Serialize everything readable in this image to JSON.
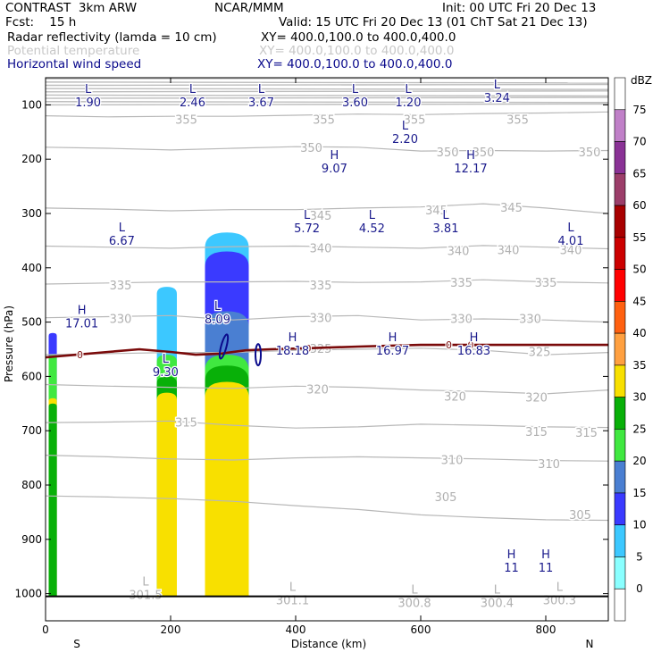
{
  "header": {
    "left_line1": "CONTRAST  3km ARW",
    "center_line1": "NCAR/MMM",
    "right_line1": "Init: 00 UTC Fri 20 Dec 13",
    "left_line2": "Fcst:    15 h",
    "right_line2": "Valid: 15 UTC Fri 20 Dec 13 (01 ChT Sat 21 Dec 13)",
    "fields": [
      {
        "name": "Radar reflectivity (lamda = 10 cm)",
        "xy": "XY= 400.0,100.0 to 400.0,400.0",
        "style": "black"
      },
      {
        "name": "Potential temperature",
        "xy": "XY= 400.0,100.0 to 400.0,400.0",
        "style": "gray"
      },
      {
        "name": "Horizontal wind speed",
        "xy": "XY= 400.0,100.0 to 400.0,400.0",
        "style": "blue"
      }
    ]
  },
  "chart_data": {
    "type": "cross-section",
    "xlabel": "Distance (km)",
    "ylabel": "Pressure (hPa)",
    "xlim": [
      0,
      900
    ],
    "ylim": [
      1050,
      50
    ],
    "x_ticks": [
      0,
      200,
      400,
      600,
      800
    ],
    "y_ticks": [
      100,
      200,
      300,
      400,
      500,
      600,
      700,
      800,
      900,
      1000
    ],
    "x_end_labels": {
      "left": "S",
      "right": "N"
    },
    "colorbar": {
      "title": "dBZ",
      "levels": [
        0,
        5,
        10,
        15,
        20,
        25,
        30,
        35,
        40,
        45,
        50,
        55,
        60,
        65,
        70,
        75
      ],
      "colors": [
        "#ffffff",
        "#8affff",
        "#3cc8ff",
        "#3a3aff",
        "#4a7fd2",
        "#40e840",
        "#08b008",
        "#f8e000",
        "#ffa040",
        "#ff6010",
        "#ff0000",
        "#cc0000",
        "#a80000",
        "#9c3e6a",
        "#8a3296",
        "#c080c8",
        "#ffffff"
      ]
    },
    "theta_contours": [
      {
        "label": "355",
        "p": [
          120,
          122,
          121,
          121,
          119,
          117,
          118,
          116,
          115,
          113
        ]
      },
      {
        "label": "350",
        "p": [
          178,
          180,
          183,
          180,
          177,
          178,
          185,
          184,
          185,
          184
        ]
      },
      {
        "label": "345",
        "p": [
          290,
          292,
          295,
          293,
          293,
          290,
          288,
          282,
          290,
          300
        ]
      },
      {
        "label": "340",
        "p": [
          360,
          362,
          364,
          361,
          360,
          362,
          364,
          359,
          362,
          365
        ]
      },
      {
        "label": "335",
        "p": [
          430,
          428,
          426,
          426,
          425,
          427,
          426,
          422,
          426,
          428
        ]
      },
      {
        "label": "330",
        "p": [
          492,
          490,
          488,
          496,
          490,
          488,
          496,
          494,
          496,
          500
        ]
      },
      {
        "label": "325",
        "p": [
          560,
          558,
          556,
          556,
          552,
          550,
          548,
          552,
          560,
          556
        ]
      },
      {
        "label": "320",
        "p": [
          615,
          618,
          620,
          622,
          618,
          620,
          625,
          628,
          632,
          625
        ]
      },
      {
        "label": "315",
        "p": [
          685,
          684,
          682,
          690,
          695,
          693,
          688,
          690,
          693,
          694
        ]
      },
      {
        "label": "310",
        "p": [
          745,
          748,
          752,
          754,
          750,
          748,
          750,
          752,
          755,
          756
        ]
      },
      {
        "label": "305",
        "p": [
          820,
          822,
          825,
          830,
          838,
          845,
          855,
          860,
          864,
          865
        ]
      }
    ],
    "theta_labels": [
      {
        "text": "355",
        "x": 225,
        "p": 128
      },
      {
        "text": "355",
        "x": 445,
        "p": 128
      },
      {
        "text": "355",
        "x": 590,
        "p": 128
      },
      {
        "text": "355",
        "x": 755,
        "p": 128
      },
      {
        "text": "350",
        "x": 425,
        "p": 180
      },
      {
        "text": "350",
        "x": 643,
        "p": 188
      },
      {
        "text": "350",
        "x": 700,
        "p": 188
      },
      {
        "text": "350",
        "x": 870,
        "p": 188
      },
      {
        "text": "345",
        "x": 440,
        "p": 305
      },
      {
        "text": "345",
        "x": 625,
        "p": 295
      },
      {
        "text": "345",
        "x": 745,
        "p": 290
      },
      {
        "text": "340",
        "x": 440,
        "p": 365
      },
      {
        "text": "340",
        "x": 660,
        "p": 370
      },
      {
        "text": "340",
        "x": 740,
        "p": 368
      },
      {
        "text": "340",
        "x": 840,
        "p": 368
      },
      {
        "text": "335",
        "x": 120,
        "p": 433
      },
      {
        "text": "335",
        "x": 440,
        "p": 433
      },
      {
        "text": "335",
        "x": 665,
        "p": 428
      },
      {
        "text": "335",
        "x": 800,
        "p": 428
      },
      {
        "text": "330",
        "x": 120,
        "p": 495
      },
      {
        "text": "330",
        "x": 440,
        "p": 493
      },
      {
        "text": "330",
        "x": 665,
        "p": 495
      },
      {
        "text": "330",
        "x": 775,
        "p": 495
      },
      {
        "text": "325",
        "x": 440,
        "p": 550
      },
      {
        "text": "325",
        "x": 675,
        "p": 553
      },
      {
        "text": "325",
        "x": 790,
        "p": 556
      },
      {
        "text": "320",
        "x": 435,
        "p": 625
      },
      {
        "text": "320",
        "x": 655,
        "p": 638
      },
      {
        "text": "320",
        "x": 785,
        "p": 640
      },
      {
        "text": "315",
        "x": 225,
        "p": 686
      },
      {
        "text": "315",
        "x": 785,
        "p": 703
      },
      {
        "text": "315",
        "x": 865,
        "p": 705
      },
      {
        "text": "310",
        "x": 650,
        "p": 755
      },
      {
        "text": "310",
        "x": 805,
        "p": 762
      },
      {
        "text": "305",
        "x": 640,
        "p": 823
      },
      {
        "text": "305",
        "x": 855,
        "p": 856
      }
    ],
    "hl_labels": [
      {
        "letter": "L",
        "value": "1.90",
        "x": 68,
        "p": 78,
        "style": "blue"
      },
      {
        "letter": "L",
        "value": "2.46",
        "x": 235,
        "p": 78,
        "style": "blue"
      },
      {
        "letter": "L",
        "value": "3.67",
        "x": 345,
        "p": 78,
        "style": "blue"
      },
      {
        "letter": "L",
        "value": "3.60",
        "x": 495,
        "p": 78,
        "style": "blue"
      },
      {
        "letter": "L",
        "value": "1.20",
        "x": 580,
        "p": 78,
        "style": "blue"
      },
      {
        "letter": "L",
        "value": "3.24",
        "x": 722,
        "p": 70,
        "style": "blue"
      },
      {
        "letter": "L",
        "value": "2.20",
        "x": 575,
        "p": 145,
        "style": "blue"
      },
      {
        "letter": "H",
        "value": "9.07",
        "x": 462,
        "p": 200,
        "style": "blue"
      },
      {
        "letter": "H",
        "value": "12.17",
        "x": 680,
        "p": 200,
        "style": "blue"
      },
      {
        "letter": "L",
        "value": "6.67",
        "x": 122,
        "p": 333,
        "style": "blue"
      },
      {
        "letter": "L",
        "value": "5.72",
        "x": 418,
        "p": 310,
        "style": "blue"
      },
      {
        "letter": "L",
        "value": "4.52",
        "x": 522,
        "p": 310,
        "style": "blue"
      },
      {
        "letter": "L",
        "value": "3.81",
        "x": 640,
        "p": 310,
        "style": "blue"
      },
      {
        "letter": "L",
        "value": "4.01",
        "x": 840,
        "p": 333,
        "style": "blue"
      },
      {
        "letter": "H",
        "value": "17.01",
        "x": 58,
        "p": 485,
        "style": "blue"
      },
      {
        "letter": "L",
        "value": "8.09",
        "x": 275,
        "p": 478,
        "style": "blue"
      },
      {
        "letter": "H",
        "value": "18.18",
        "x": 395,
        "p": 535,
        "style": "blue"
      },
      {
        "letter": "H",
        "value": "16.97",
        "x": 555,
        "p": 535,
        "style": "blue"
      },
      {
        "letter": "H",
        "value": "16.83",
        "x": 685,
        "p": 535,
        "style": "blue"
      },
      {
        "letter": "L",
        "value": "9.30",
        "x": 192,
        "p": 575,
        "style": "blue"
      },
      {
        "letter": "H",
        "value": "11",
        "x": 745,
        "p": 935,
        "style": "blue"
      },
      {
        "letter": "H",
        "value": "11",
        "x": 800,
        "p": 935,
        "style": "blue"
      },
      {
        "letter": "L",
        "value": "301.5",
        "x": 160,
        "p": 985,
        "style": "gray"
      },
      {
        "letter": "L",
        "value": "301.1",
        "x": 395,
        "p": 995,
        "style": "gray"
      },
      {
        "letter": "L",
        "value": "300.8",
        "x": 590,
        "p": 1000,
        "style": "gray"
      },
      {
        "letter": "L",
        "value": "300.4",
        "x": 722,
        "p": 1000,
        "style": "gray"
      },
      {
        "letter": "L",
        "value": "300.3",
        "x": 822,
        "p": 995,
        "style": "gray"
      }
    ],
    "zero_line": {
      "label": "0",
      "x": [
        0,
        50,
        100,
        150,
        200,
        240,
        280,
        320,
        360,
        420,
        500,
        600,
        700,
        800,
        900
      ],
      "p": [
        565,
        560,
        555,
        550,
        555,
        560,
        558,
        552,
        550,
        548,
        545,
        542,
        542,
        542,
        542
      ],
      "label_x": [
        55,
        420,
        645,
        680
      ]
    },
    "reflectivity_cells": [
      {
        "x0": 5,
        "x1": 18,
        "layers": [
          {
            "dbz": 10,
            "top": 520,
            "bottom": 1005
          },
          {
            "dbz": 20,
            "top": 560,
            "bottom": 1005
          },
          {
            "dbz": 30,
            "top": 640,
            "bottom": 1005
          },
          {
            "dbz": 25,
            "top": 650,
            "bottom": 1005
          }
        ]
      },
      {
        "x0": 178,
        "x1": 210,
        "layers": [
          {
            "dbz": 5,
            "top": 435,
            "bottom": 1005
          },
          {
            "dbz": 20,
            "top": 560,
            "bottom": 1005
          },
          {
            "dbz": 25,
            "top": 600,
            "bottom": 1005
          },
          {
            "dbz": 30,
            "top": 630,
            "bottom": 1005
          }
        ]
      },
      {
        "x0": 255,
        "x1": 325,
        "layers": [
          {
            "dbz": 5,
            "top": 335,
            "bottom": 1005
          },
          {
            "dbz": 10,
            "top": 370,
            "bottom": 1005
          },
          {
            "dbz": 15,
            "top": 480,
            "bottom": 1005
          },
          {
            "dbz": 20,
            "top": 560,
            "bottom": 1005
          },
          {
            "dbz": 25,
            "top": 580,
            "bottom": 1005
          },
          {
            "dbz": 30,
            "top": 610,
            "bottom": 1005
          }
        ]
      }
    ]
  }
}
